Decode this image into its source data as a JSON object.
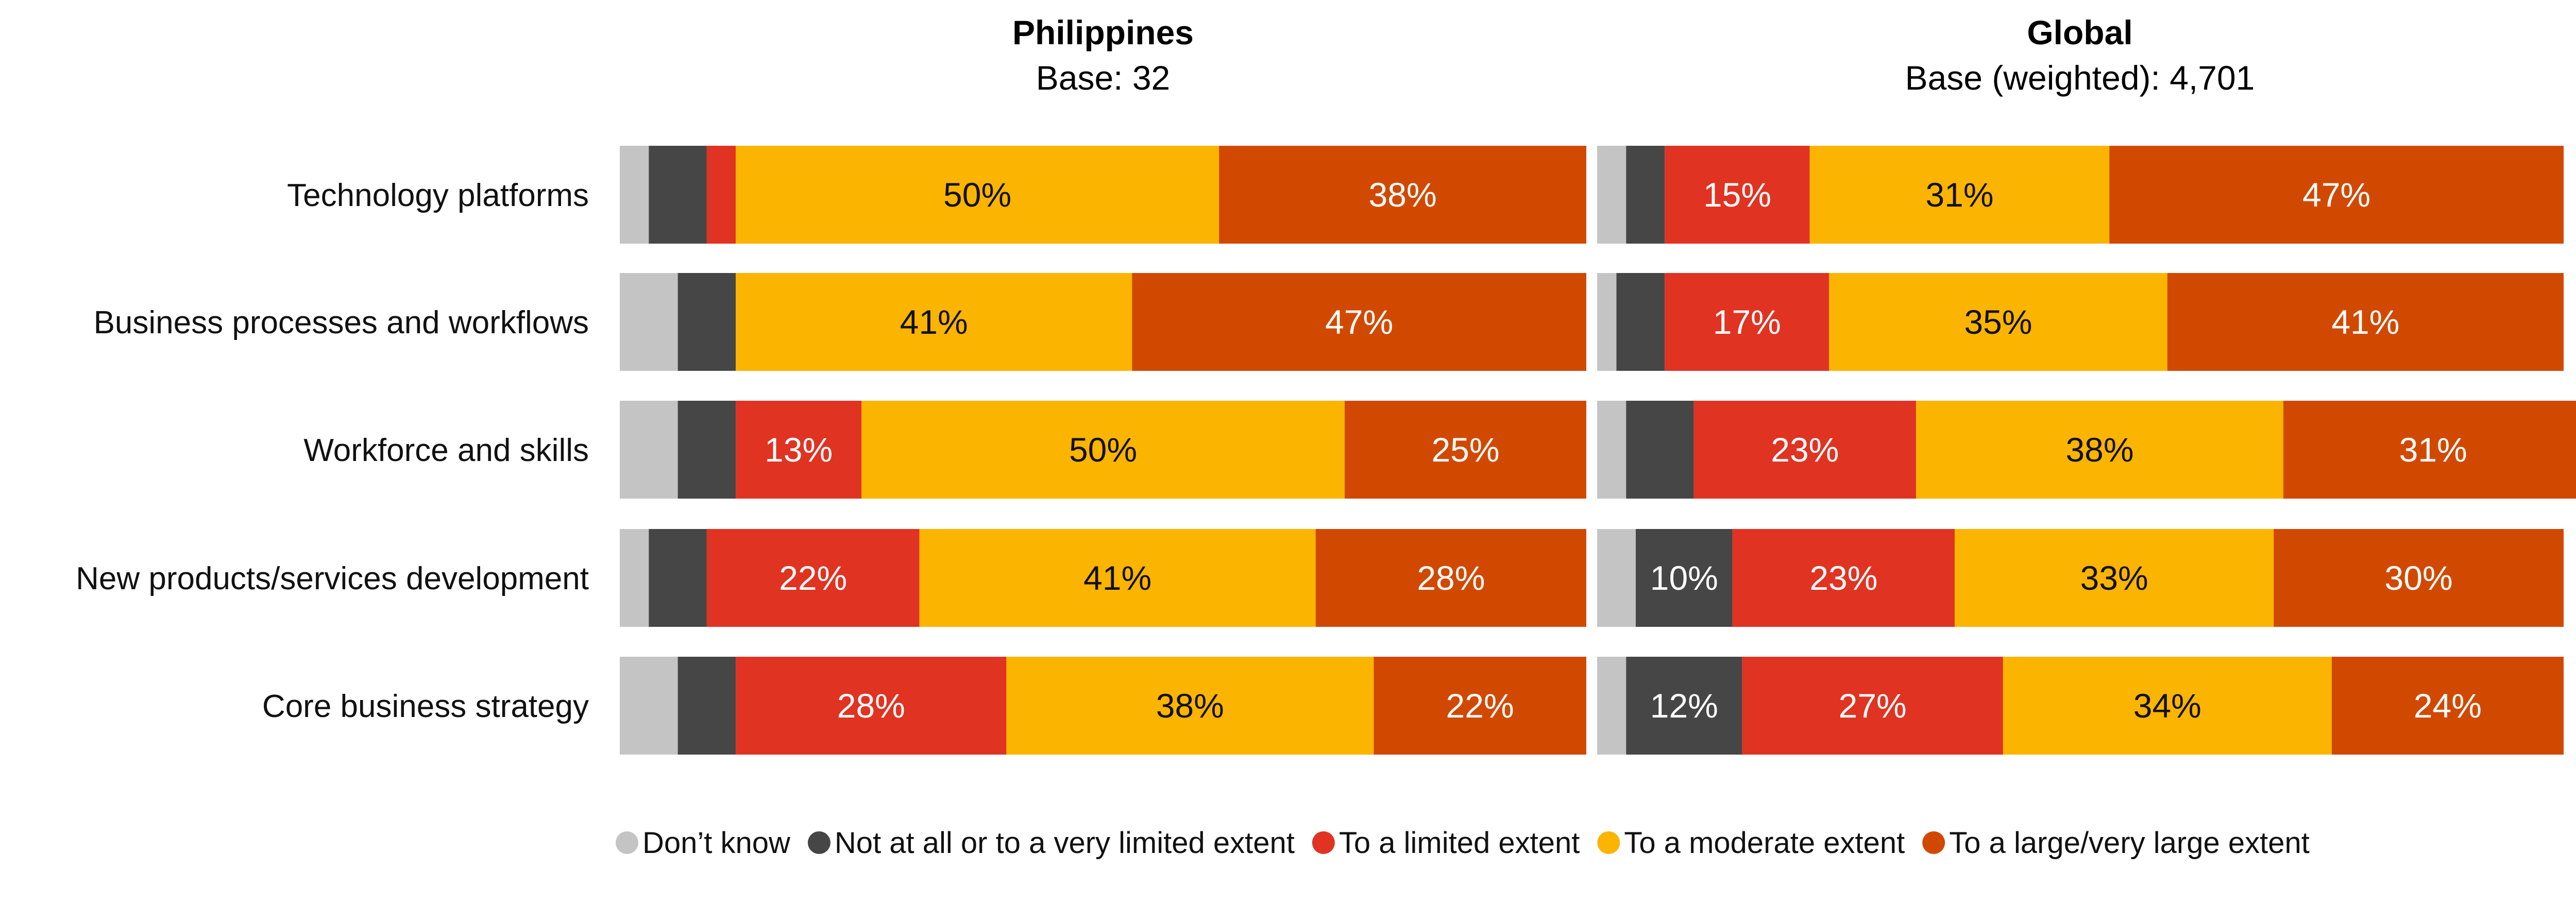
{
  "colors": {
    "dont_know": "#c4c4c4",
    "not_at_all": "#464646",
    "limited": "#e03322",
    "moderate": "#fbb400",
    "large": "#d14900"
  },
  "chart_data": [
    {
      "type": "bar",
      "orientation": "horizontal",
      "stacked": true,
      "title": "Philippines",
      "subtitle": "Base: 32",
      "xlim": [
        0,
        100
      ],
      "categories": [
        "Technology platforms",
        "Business processes and workflows",
        "Workforce and skills",
        "New products/services development",
        "Core business strategy"
      ],
      "series": [
        {
          "name": "Don’t know",
          "color_key": "dont_know",
          "values": [
            3,
            6,
            6,
            3,
            6
          ]
        },
        {
          "name": "Not at all or to a very limited extent",
          "color_key": "not_at_all",
          "values": [
            6,
            6,
            6,
            6,
            6
          ]
        },
        {
          "name": "To a limited extent",
          "color_key": "limited",
          "values": [
            3,
            0,
            13,
            22,
            28
          ]
        },
        {
          "name": "To a moderate extent",
          "color_key": "moderate",
          "values": [
            50,
            41,
            50,
            41,
            38
          ]
        },
        {
          "name": "To a large/very large extent",
          "color_key": "large",
          "values": [
            38,
            47,
            25,
            28,
            22
          ]
        }
      ],
      "label_min": 10,
      "grid": false,
      "legend": "bottom"
    },
    {
      "type": "bar",
      "orientation": "horizontal",
      "stacked": true,
      "title": "Global",
      "subtitle": "Base (weighted): 4,701",
      "xlim": [
        0,
        100
      ],
      "categories": [
        "Technology platforms",
        "Business processes and workflows",
        "Workforce and skills",
        "New products/services development",
        "Core business strategy"
      ],
      "series": [
        {
          "name": "Don’t know",
          "color_key": "dont_know",
          "values": [
            3,
            2,
            3,
            4,
            3
          ]
        },
        {
          "name": "Not at all or to a very limited extent",
          "color_key": "not_at_all",
          "values": [
            4,
            5,
            7,
            10,
            12
          ]
        },
        {
          "name": "To a limited extent",
          "color_key": "limited",
          "values": [
            15,
            17,
            23,
            23,
            27
          ]
        },
        {
          "name": "To a moderate extent",
          "color_key": "moderate",
          "values": [
            31,
            35,
            38,
            33,
            34
          ]
        },
        {
          "name": "To a large/very large extent",
          "color_key": "large",
          "values": [
            47,
            41,
            31,
            30,
            24
          ]
        }
      ],
      "label_min": 10,
      "grid": false,
      "legend": "bottom"
    }
  ],
  "legend": [
    {
      "label": "Don’t know",
      "color_key": "dont_know"
    },
    {
      "label": "Not at all or to a very limited extent",
      "color_key": "not_at_all"
    },
    {
      "label": "To a limited extent",
      "color_key": "limited"
    },
    {
      "label": "To a moderate extent",
      "color_key": "moderate"
    },
    {
      "label": "To a large/very large extent",
      "color_key": "large"
    }
  ]
}
